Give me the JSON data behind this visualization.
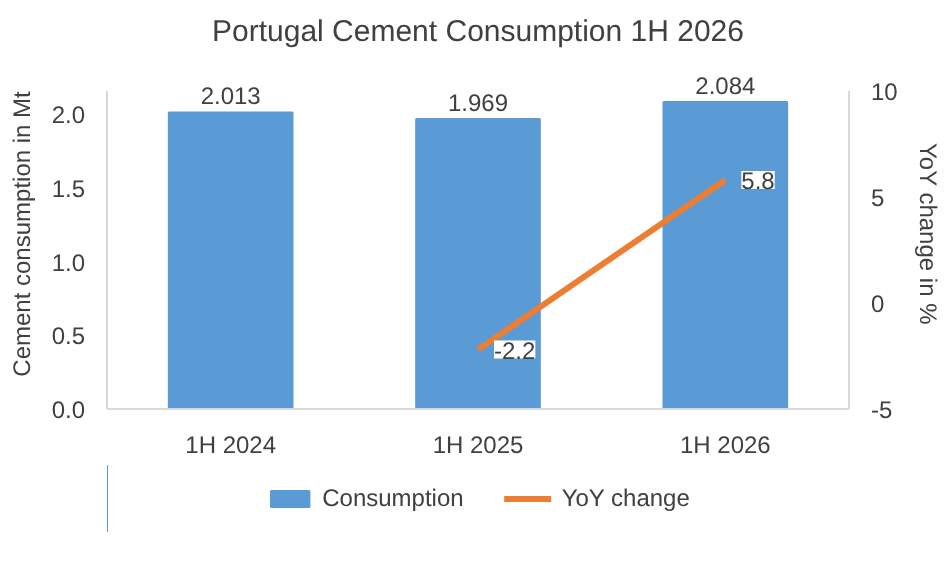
{
  "chart_data": {
    "type": "bar",
    "title": "Portugal Cement Consumption 1H 2026",
    "ylabel": "Cement consumption in Mt",
    "y2label": "YoY change in %",
    "categories": [
      "1H 2024",
      "1H 2025",
      "1H 2026"
    ],
    "series": [
      {
        "name": "Consumption",
        "color": "#5b9bd5",
        "values": [
          2.013,
          1.969,
          2.084
        ]
      },
      {
        "name": "YoY change",
        "type": "line",
        "axis": "y2",
        "color": "#ed7d31",
        "values": [
          null,
          -2.2,
          5.8
        ]
      }
    ],
    "ylim": [
      0,
      2.16
    ],
    "yticks": [
      {
        "value": 0,
        "label": "0.0"
      },
      {
        "value": 0.5,
        "label": "0.5"
      },
      {
        "value": 1,
        "label": "1.0"
      },
      {
        "value": 1.5,
        "label": "1.5"
      },
      {
        "value": 2,
        "label": "2.0"
      }
    ],
    "y2lim": [
      -5,
      10
    ],
    "y2ticks": [
      -5,
      0,
      5,
      10
    ],
    "data_labels": true,
    "legend": "bottom",
    "marker": "none",
    "line_style": "solid"
  }
}
